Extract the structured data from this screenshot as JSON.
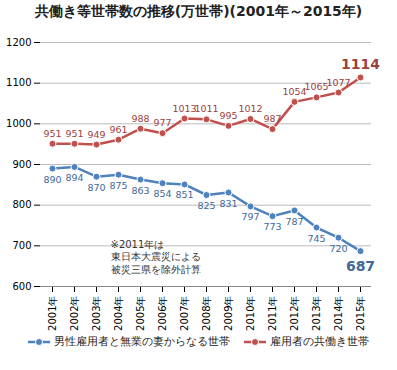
{
  "chart_data": {
    "type": "line",
    "title": "共働き等世帯数の推移(万世帯)(2001年～2015年)",
    "categories": [
      "2001年",
      "2002年",
      "2003年",
      "2004年",
      "2005年",
      "2006年",
      "2007年",
      "2008年",
      "2009年",
      "2010年",
      "2011年",
      "2012年",
      "2013年",
      "2014年",
      "2015年"
    ],
    "series": [
      {
        "name": "男性雇用者と無業の妻からなる世帯",
        "color": "#4f81bd",
        "marker": "circle",
        "values": [
          890,
          894,
          870,
          875,
          863,
          854,
          851,
          825,
          831,
          797,
          773,
          787,
          745,
          720,
          687
        ]
      },
      {
        "name": "雇用者の共働き世帯",
        "color": "#c0504d",
        "marker": "circle",
        "values": [
          951,
          951,
          949,
          961,
          988,
          977,
          1013,
          1011,
          995,
          1012,
          987,
          1054,
          1065,
          1077,
          1114
        ]
      }
    ],
    "ylim": [
      600,
      1200
    ],
    "yticks": [
      600,
      700,
      800,
      900,
      1000,
      1100,
      1200
    ],
    "grid": true,
    "data_labels": true,
    "legend": "bottom",
    "annotations": [
      "※2011年は\n東日本大震災による\n被災三県を除外計算"
    ]
  }
}
